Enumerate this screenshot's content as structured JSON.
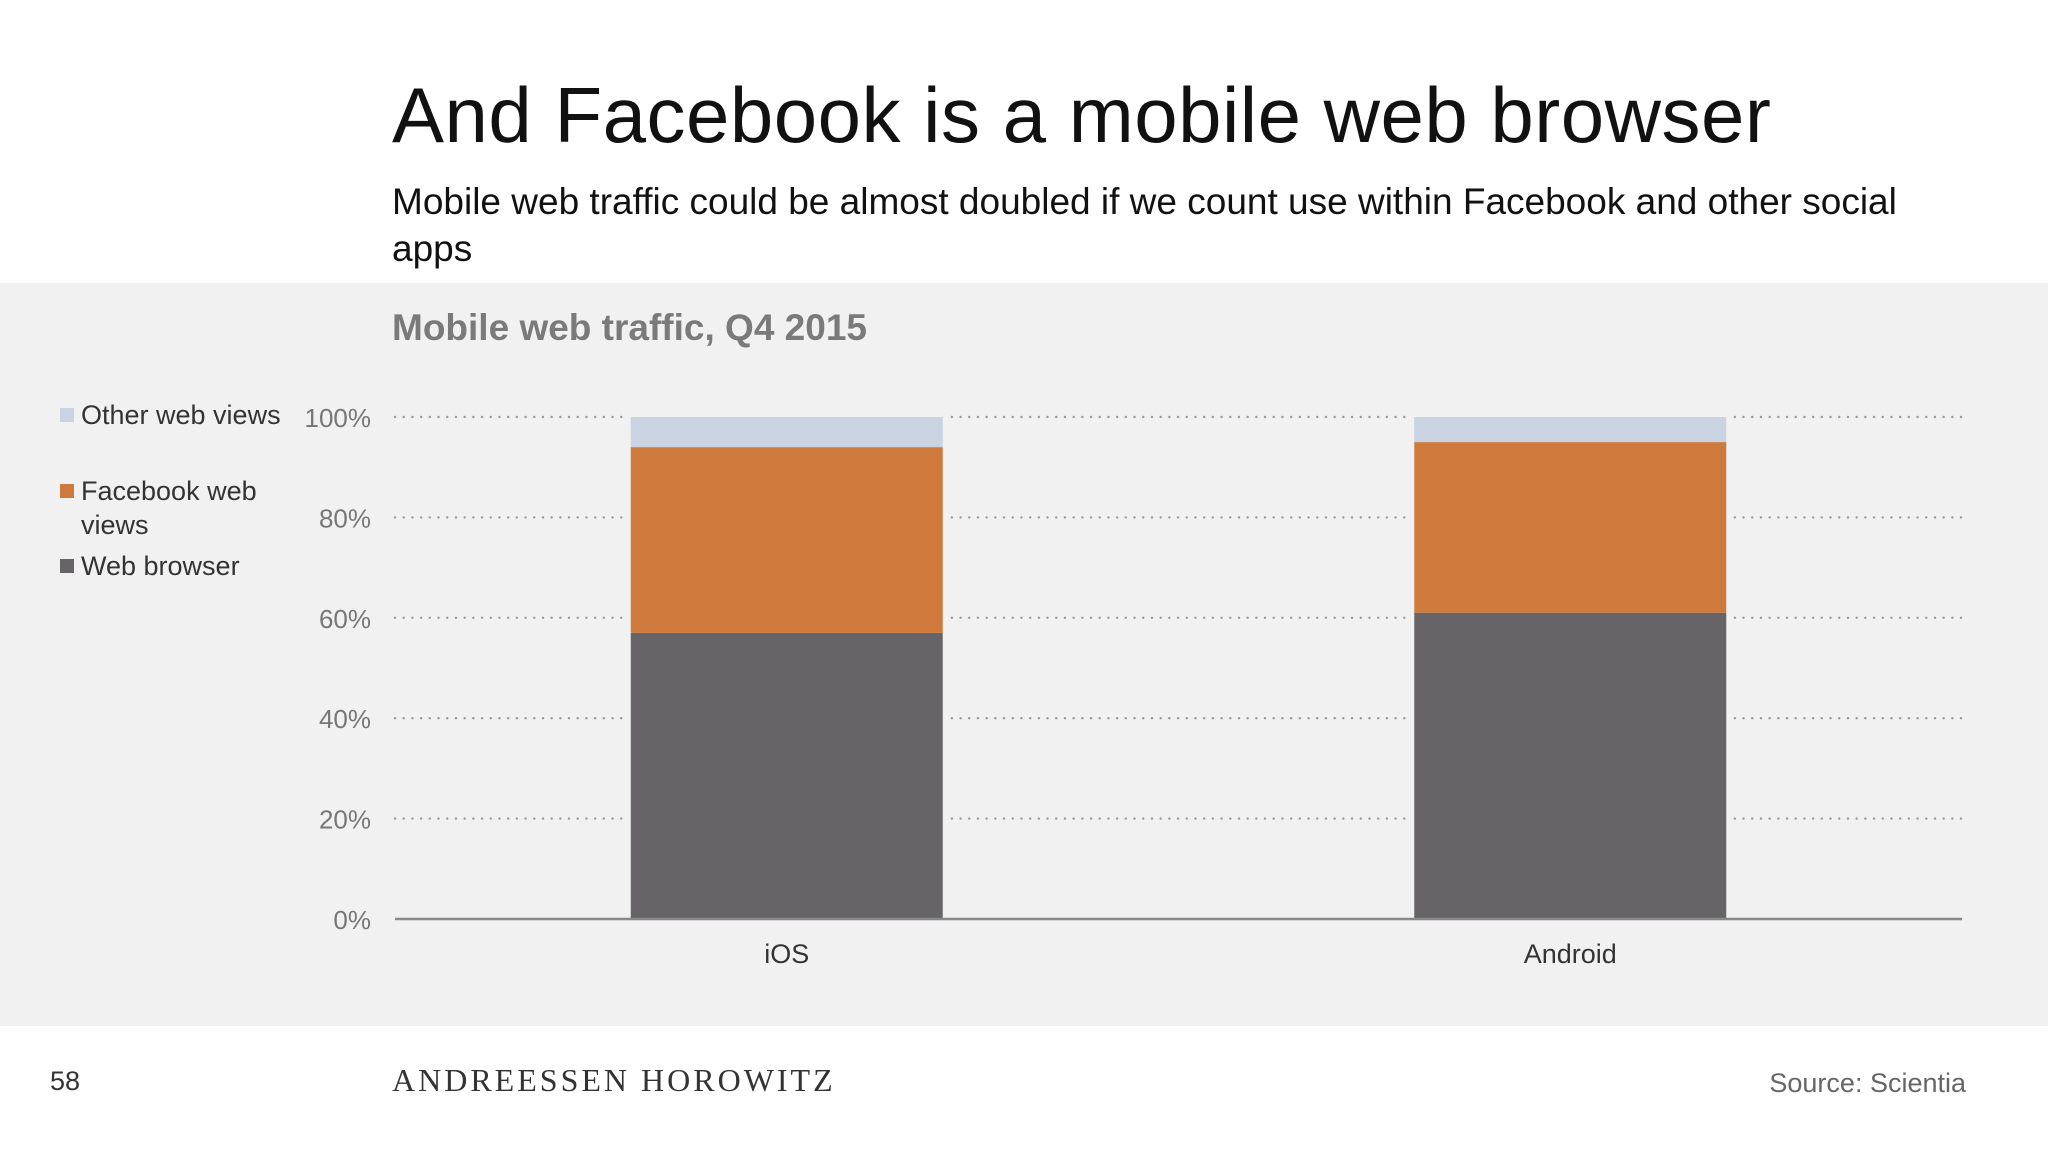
{
  "slide": {
    "title": "And Facebook is a mobile web browser",
    "subtitle": "Mobile web traffic could be almost doubled if we count use within Facebook and other social apps"
  },
  "legend": [
    {
      "label": "Other web views",
      "color": "#c9d3e2"
    },
    {
      "label": "Facebook web views",
      "color": "#cd7a3c"
    },
    {
      "label": "Web browser",
      "color": "#666467"
    }
  ],
  "footer": {
    "page_number": "58",
    "brand": "ANDREESSEN HOROWITZ",
    "source": "Source: Scientia"
  },
  "colors": {
    "panel_background": "#f1f1f1",
    "grid": "#9a9a9a",
    "axis_line": "#888888",
    "tick_label": "#777777"
  },
  "chart_data": {
    "type": "bar",
    "stacked": true,
    "title": "Mobile web traffic, Q4 2015",
    "categories": [
      "iOS",
      "Android"
    ],
    "series": [
      {
        "name": "Web browser",
        "values": [
          57,
          61
        ],
        "color": "#666467"
      },
      {
        "name": "Facebook web views",
        "values": [
          37,
          34
        ],
        "color": "#cd7a3c"
      },
      {
        "name": "Other web views",
        "values": [
          6,
          5
        ],
        "color": "#c9d3e2"
      }
    ],
    "y_ticks": [
      "0%",
      "20%",
      "40%",
      "60%",
      "80%",
      "100%"
    ],
    "ylim": [
      0,
      100
    ],
    "grid": "dotted",
    "legend_position": "left"
  }
}
